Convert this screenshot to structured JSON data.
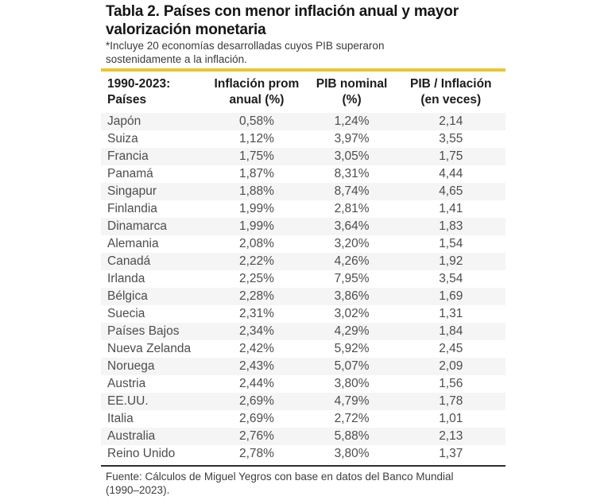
{
  "page": {
    "title_line1": "Tabla 2. Países con menor inflación anual y mayor",
    "title_line2": "valorización monetaria",
    "subtitle_line1": "*Incluye 20 economías desarrolladas cuyos PIB superaron",
    "subtitle_line2": "sostenidamente a la inflación.",
    "accent_color": "#eac62e"
  },
  "table": {
    "columns": [
      {
        "line1": "1990-2023:",
        "line2": "Países"
      },
      {
        "line1": "Inflación prom",
        "line2": "anual (%)"
      },
      {
        "line1": "PIB nominal",
        "line2": "(%)"
      },
      {
        "line1": "PIB / Inflación",
        "line2": "(en veces)"
      }
    ],
    "rows": [
      {
        "country": "Japón",
        "inflacion": "0,58%",
        "pib": "1,24%",
        "ratio": "2,14"
      },
      {
        "country": "Suiza",
        "inflacion": "1,12%",
        "pib": "3,97%",
        "ratio": "3,55"
      },
      {
        "country": "Francia",
        "inflacion": "1,75%",
        "pib": "3,05%",
        "ratio": "1,75"
      },
      {
        "country": "Panamá",
        "inflacion": "1,87%",
        "pib": "8,31%",
        "ratio": "4,44"
      },
      {
        "country": "Singapur",
        "inflacion": "1,88%",
        "pib": "8,74%",
        "ratio": "4,65"
      },
      {
        "country": "Finlandia",
        "inflacion": "1,99%",
        "pib": "2,81%",
        "ratio": "1,41"
      },
      {
        "country": "Dinamarca",
        "inflacion": "1,99%",
        "pib": "3,64%",
        "ratio": "1,83"
      },
      {
        "country": "Alemania",
        "inflacion": "2,08%",
        "pib": "3,20%",
        "ratio": "1,54"
      },
      {
        "country": "Canadá",
        "inflacion": "2,22%",
        "pib": "4,26%",
        "ratio": "1,92"
      },
      {
        "country": "Irlanda",
        "inflacion": "2,25%",
        "pib": "7,95%",
        "ratio": "3,54"
      },
      {
        "country": "Bélgica",
        "inflacion": "2,28%",
        "pib": "3,86%",
        "ratio": "1,69"
      },
      {
        "country": "Suecia",
        "inflacion": "2,31%",
        "pib": "3,02%",
        "ratio": "1,31"
      },
      {
        "country": "Países Bajos",
        "inflacion": "2,34%",
        "pib": "4,29%",
        "ratio": "1,84"
      },
      {
        "country": "Nueva Zelanda",
        "inflacion": "2,42%",
        "pib": "5,92%",
        "ratio": "2,45"
      },
      {
        "country": "Noruega",
        "inflacion": "2,43%",
        "pib": "5,07%",
        "ratio": "2,09"
      },
      {
        "country": "Austria",
        "inflacion": "2,44%",
        "pib": "3,80%",
        "ratio": "1,56"
      },
      {
        "country": "EE.UU.",
        "inflacion": "2,69%",
        "pib": "4,79%",
        "ratio": "1,78"
      },
      {
        "country": "Italia",
        "inflacion": "2,69%",
        "pib": "2,72%",
        "ratio": "1,01"
      },
      {
        "country": "Australia",
        "inflacion": "2,76%",
        "pib": "5,88%",
        "ratio": "2,13"
      },
      {
        "country": "Reino Unido",
        "inflacion": "2,78%",
        "pib": "3,80%",
        "ratio": "1,37"
      }
    ]
  },
  "footer": {
    "source_line1": "Fuente: Cálculos de Miguel Yegros con base en datos del Banco Mundial",
    "source_line2": "(1990–2023)."
  },
  "chart_data": {
    "type": "table",
    "title": "Tabla 2. Países con menor inflación anual y mayor valorización monetaria",
    "note": "*Incluye 20 economías desarrolladas cuyos PIB superaron sostenidamente a la inflación.",
    "columns": [
      "1990-2023: Países",
      "Inflación prom anual (%)",
      "PIB nominal (%)",
      "PIB / Inflación (en veces)"
    ],
    "rows": [
      [
        "Japón",
        0.58,
        1.24,
        2.14
      ],
      [
        "Suiza",
        1.12,
        3.97,
        3.55
      ],
      [
        "Francia",
        1.75,
        3.05,
        1.75
      ],
      [
        "Panamá",
        1.87,
        8.31,
        4.44
      ],
      [
        "Singapur",
        1.88,
        8.74,
        4.65
      ],
      [
        "Finlandia",
        1.99,
        2.81,
        1.41
      ],
      [
        "Dinamarca",
        1.99,
        3.64,
        1.83
      ],
      [
        "Alemania",
        2.08,
        3.2,
        1.54
      ],
      [
        "Canadá",
        2.22,
        4.26,
        1.92
      ],
      [
        "Irlanda",
        2.25,
        7.95,
        3.54
      ],
      [
        "Bélgica",
        2.28,
        3.86,
        1.69
      ],
      [
        "Suecia",
        2.31,
        3.02,
        1.31
      ],
      [
        "Países Bajos",
        2.34,
        4.29,
        1.84
      ],
      [
        "Nueva Zelanda",
        2.42,
        5.92,
        2.45
      ],
      [
        "Noruega",
        2.43,
        5.07,
        2.09
      ],
      [
        "Austria",
        2.44,
        3.8,
        1.56
      ],
      [
        "EE.UU.",
        2.69,
        4.79,
        1.78
      ],
      [
        "Italia",
        2.69,
        2.72,
        1.01
      ],
      [
        "Australia",
        2.76,
        5.88,
        2.13
      ],
      [
        "Reino Unido",
        2.78,
        3.8,
        1.37
      ]
    ],
    "source": "Fuente: Cálculos de Miguel Yegros con base en datos del Banco Mundial (1990–2023)."
  }
}
